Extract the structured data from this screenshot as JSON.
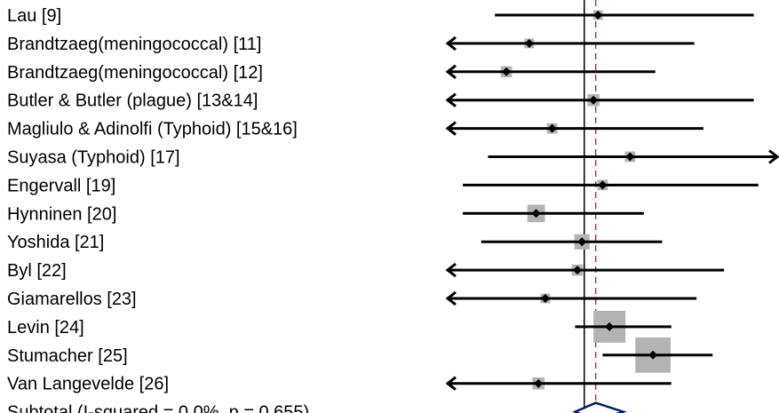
{
  "chart_data": {
    "type": "forest",
    "title": "",
    "xlabel": "",
    "null_value": 1.0,
    "pooled_value": 1.05,
    "x_range": [
      0.4,
      1.85
    ],
    "studies": [
      {
        "label": "Lau [9]",
        "estimate": 1.06,
        "ci_low": 0.61,
        "ci_high": 1.74,
        "weight": 1.2,
        "clipped_low": false,
        "clipped_high": false
      },
      {
        "label": "Brandtzaeg(meningococcal) [11]",
        "estimate": 0.76,
        "ci_low": 0.4,
        "ci_high": 1.48,
        "weight": 1.2,
        "clipped_low": true,
        "clipped_high": false
      },
      {
        "label": "Brandtzaeg(meningococcal) [12]",
        "estimate": 0.66,
        "ci_low": 0.4,
        "ci_high": 1.31,
        "weight": 1.4,
        "clipped_low": true,
        "clipped_high": false
      },
      {
        "label": "Butler & Butler (plague) [13&14]",
        "estimate": 1.04,
        "ci_low": 0.4,
        "ci_high": 1.74,
        "weight": 1.5,
        "clipped_low": true,
        "clipped_high": false
      },
      {
        "label": "Magliulo & Adinolfi (Typhoid) [15&16]",
        "estimate": 0.86,
        "ci_low": 0.4,
        "ci_high": 1.52,
        "weight": 1.3,
        "clipped_low": true,
        "clipped_high": false
      },
      {
        "label": "Suyasa (Typhoid) [17]",
        "estimate": 1.2,
        "ci_low": 0.58,
        "ci_high": 1.85,
        "weight": 1.3,
        "clipped_low": false,
        "clipped_high": true
      },
      {
        "label": "Engervall [19]",
        "estimate": 1.08,
        "ci_low": 0.47,
        "ci_high": 1.76,
        "weight": 1.3,
        "clipped_low": false,
        "clipped_high": false
      },
      {
        "label": "Hynninen [20]",
        "estimate": 0.79,
        "ci_low": 0.47,
        "ci_high": 1.26,
        "weight": 2.2,
        "clipped_low": false,
        "clipped_high": false
      },
      {
        "label": "Yoshida [21]",
        "estimate": 0.99,
        "ci_low": 0.55,
        "ci_high": 1.34,
        "weight": 1.9,
        "clipped_low": false,
        "clipped_high": false
      },
      {
        "label": "Byl [22]",
        "estimate": 0.97,
        "ci_low": 0.4,
        "ci_high": 1.61,
        "weight": 1.4,
        "clipped_low": true,
        "clipped_high": false
      },
      {
        "label": "Giamarellos [23]",
        "estimate": 0.83,
        "ci_low": 0.4,
        "ci_high": 1.49,
        "weight": 1.2,
        "clipped_low": true,
        "clipped_high": false
      },
      {
        "label": "Levin [24]",
        "estimate": 1.11,
        "ci_low": 0.96,
        "ci_high": 1.38,
        "weight": 4.0,
        "clipped_low": false,
        "clipped_high": false
      },
      {
        "label": "Stumacher [25]",
        "estimate": 1.3,
        "ci_low": 1.08,
        "ci_high": 1.56,
        "weight": 4.4,
        "clipped_low": false,
        "clipped_high": false
      },
      {
        "label": "Van Langevelde [26]",
        "estimate": 0.8,
        "ci_low": 0.4,
        "ci_high": 1.38,
        "weight": 1.5,
        "clipped_low": true,
        "clipped_high": false
      }
    ],
    "subtotal": {
      "label": "Subtotal  (I-squared = 0.0%, p = 0.655)",
      "estimate": 1.05,
      "ci_low": 0.96,
      "ci_high": 1.17
    },
    "colors": {
      "line": "#000000",
      "marker": "#000000",
      "weight_box": "#b3b3b3",
      "null_line": "#000000",
      "pooled_line": "#a0404a",
      "diamond": "#001a66"
    }
  }
}
